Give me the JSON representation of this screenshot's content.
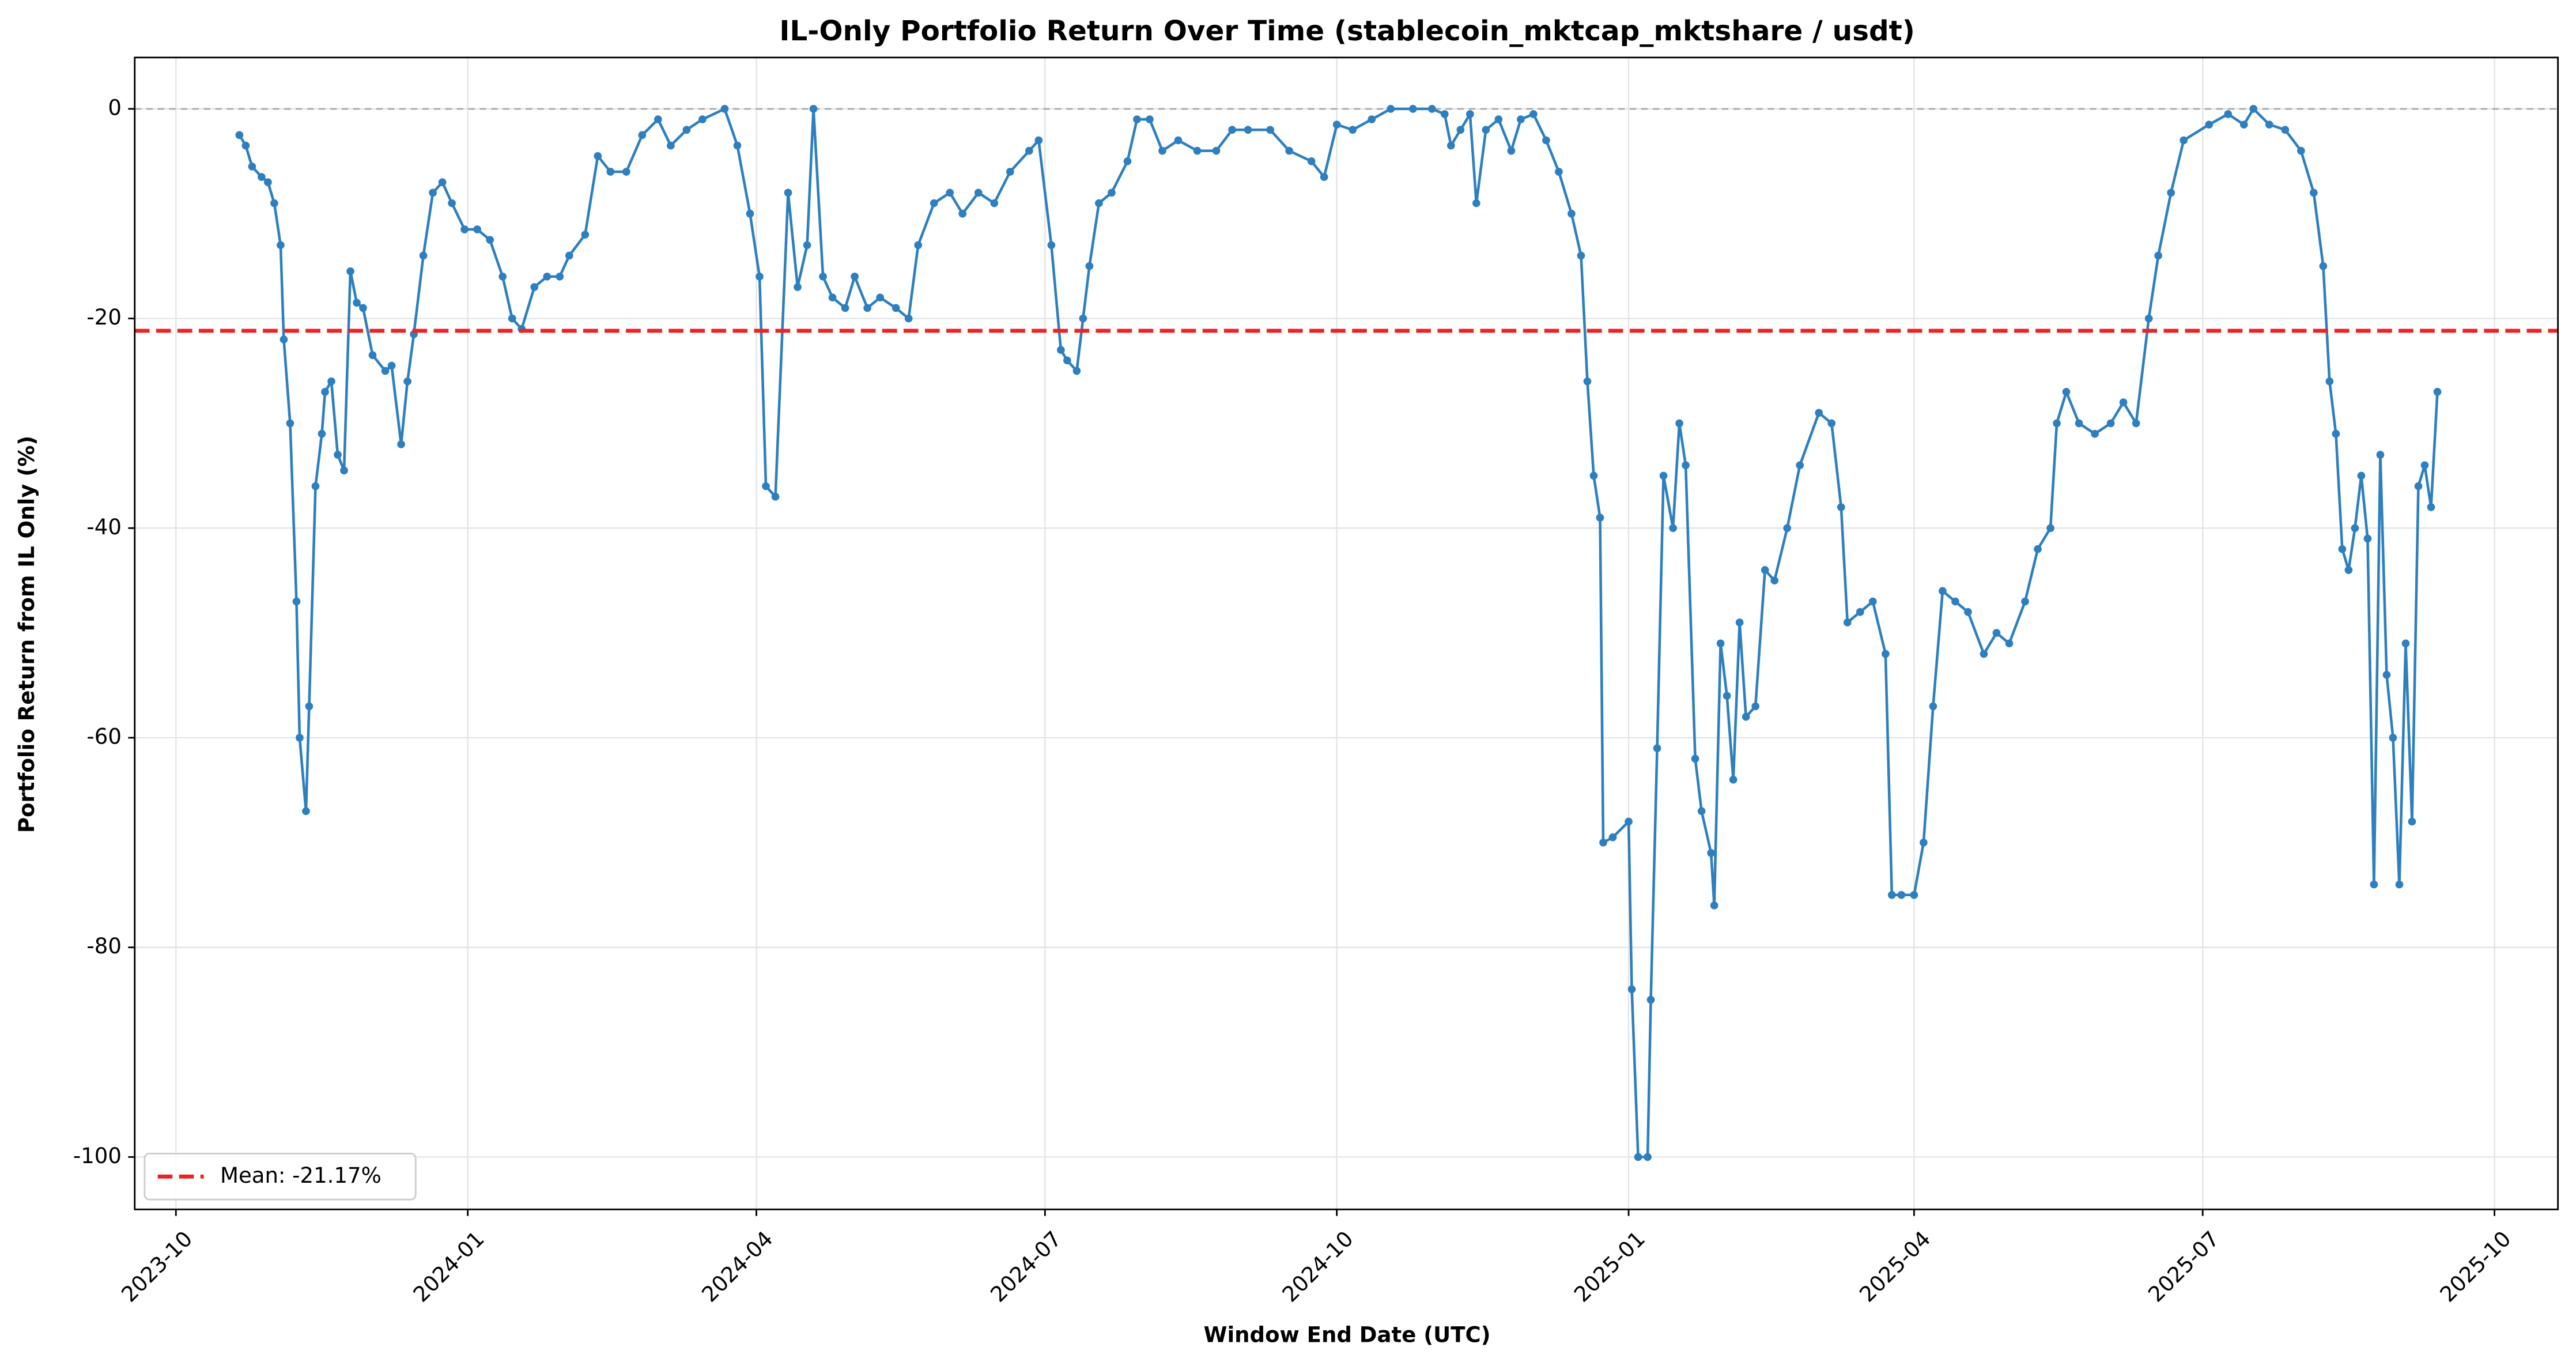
{
  "chart_data": {
    "type": "line",
    "title": "IL-Only Portfolio Return Over Time (stablecoin_mktcap_mktshare / usdt)",
    "x_label": "Window End Date (UTC)",
    "y_label": "Portfolio Return from IL Only (%)",
    "xlim": [
      "2023-09-18",
      "2025-10-21"
    ],
    "ylim": [
      -105,
      4.9
    ],
    "xticks": [
      {
        "value": "2023-10-01",
        "label": "2023-10"
      },
      {
        "value": "2024-01-01",
        "label": "2024-01"
      },
      {
        "value": "2024-04-01",
        "label": "2024-04"
      },
      {
        "value": "2024-07-01",
        "label": "2024-07"
      },
      {
        "value": "2024-10-01",
        "label": "2024-10"
      },
      {
        "value": "2025-01-01",
        "label": "2025-01"
      },
      {
        "value": "2025-04-01",
        "label": "2025-04"
      },
      {
        "value": "2025-07-01",
        "label": "2025-07"
      },
      {
        "value": "2025-10-01",
        "label": "2025-10"
      }
    ],
    "yticks": [
      -100,
      -80,
      -60,
      -40,
      -20,
      0
    ],
    "grid": true,
    "legend": "lower left",
    "reference_line": 0,
    "mean_line": {
      "value": -21.17,
      "label": "Mean: -21.17%",
      "color": "#ee2222"
    },
    "x": [
      "2023-10-21",
      "2023-10-23",
      "2023-10-25",
      "2023-10-28",
      "2023-10-30",
      "2023-11-01",
      "2023-11-03",
      "2023-11-04",
      "2023-11-06",
      "2023-11-08",
      "2023-11-09",
      "2023-11-11",
      "2023-11-12",
      "2023-11-14",
      "2023-11-16",
      "2023-11-17",
      "2023-11-19",
      "2023-11-21",
      "2023-11-23",
      "2023-11-25",
      "2023-11-27",
      "2023-11-29",
      "2023-12-02",
      "2023-12-06",
      "2023-12-08",
      "2023-12-11",
      "2023-12-13",
      "2023-12-15",
      "2023-12-18",
      "2023-12-21",
      "2023-12-24",
      "2023-12-27",
      "2023-12-31",
      "2024-01-04",
      "2024-01-08",
      "2024-01-12",
      "2024-01-15",
      "2024-01-18",
      "2024-01-22",
      "2024-01-26",
      "2024-01-30",
      "2024-02-02",
      "2024-02-07",
      "2024-02-11",
      "2024-02-15",
      "2024-02-20",
      "2024-02-25",
      "2024-03-01",
      "2024-03-05",
      "2024-03-10",
      "2024-03-15",
      "2024-03-22",
      "2024-03-26",
      "2024-03-30",
      "2024-04-02",
      "2024-04-04",
      "2024-04-07",
      "2024-04-11",
      "2024-04-14",
      "2024-04-17",
      "2024-04-19",
      "2024-04-22",
      "2024-04-25",
      "2024-04-29",
      "2024-05-02",
      "2024-05-06",
      "2024-05-10",
      "2024-05-15",
      "2024-05-19",
      "2024-05-22",
      "2024-05-27",
      "2024-06-01",
      "2024-06-05",
      "2024-06-10",
      "2024-06-15",
      "2024-06-20",
      "2024-06-26",
      "2024-06-29",
      "2024-07-03",
      "2024-07-06",
      "2024-07-08",
      "2024-07-11",
      "2024-07-13",
      "2024-07-15",
      "2024-07-18",
      "2024-07-22",
      "2024-07-27",
      "2024-07-30",
      "2024-08-03",
      "2024-08-07",
      "2024-08-12",
      "2024-08-18",
      "2024-08-24",
      "2024-08-29",
      "2024-09-03",
      "2024-09-10",
      "2024-09-16",
      "2024-09-23",
      "2024-09-27",
      "2024-10-01",
      "2024-10-06",
      "2024-10-12",
      "2024-10-18",
      "2024-10-25",
      "2024-10-31",
      "2024-11-04",
      "2024-11-06",
      "2024-11-09",
      "2024-11-12",
      "2024-11-14",
      "2024-11-17",
      "2024-11-21",
      "2024-11-25",
      "2024-11-28",
      "2024-12-02",
      "2024-12-06",
      "2024-12-10",
      "2024-12-14",
      "2024-12-17",
      "2024-12-19",
      "2024-12-21",
      "2024-12-23",
      "2024-12-24",
      "2024-12-27",
      "2025-01-01",
      "2025-01-02",
      "2025-01-04",
      "2025-01-07",
      "2025-01-08",
      "2025-01-10",
      "2025-01-12",
      "2025-01-15",
      "2025-01-17",
      "2025-01-19",
      "2025-01-22",
      "2025-01-24",
      "2025-01-27",
      "2025-01-28",
      "2025-01-30",
      "2025-02-01",
      "2025-02-03",
      "2025-02-05",
      "2025-02-07",
      "2025-02-10",
      "2025-02-13",
      "2025-02-16",
      "2025-02-20",
      "2025-02-24",
      "2025-03-02",
      "2025-03-06",
      "2025-03-09",
      "2025-03-11",
      "2025-03-15",
      "2025-03-19",
      "2025-03-23",
      "2025-03-25",
      "2025-03-28",
      "2025-04-01",
      "2025-04-04",
      "2025-04-07",
      "2025-04-10",
      "2025-04-14",
      "2025-04-18",
      "2025-04-23",
      "2025-04-27",
      "2025-05-01",
      "2025-05-06",
      "2025-05-10",
      "2025-05-14",
      "2025-05-16",
      "2025-05-19",
      "2025-05-23",
      "2025-05-28",
      "2025-06-02",
      "2025-06-06",
      "2025-06-10",
      "2025-06-14",
      "2025-06-17",
      "2025-06-21",
      "2025-06-25",
      "2025-07-03",
      "2025-07-09",
      "2025-07-14",
      "2025-07-17",
      "2025-07-22",
      "2025-07-27",
      "2025-08-01",
      "2025-08-05",
      "2025-08-08",
      "2025-08-10",
      "2025-08-12",
      "2025-08-14",
      "2025-08-16",
      "2025-08-18",
      "2025-08-20",
      "2025-08-22",
      "2025-08-24",
      "2025-08-26",
      "2025-08-28",
      "2025-08-30",
      "2025-09-01",
      "2025-09-03",
      "2025-09-05",
      "2025-09-07",
      "2025-09-09",
      "2025-09-11",
      "2025-09-13"
    ],
    "series": [
      {
        "color": "#2e7fbf",
        "values": [
          -2.5,
          -3.5,
          -5.5,
          -6.5,
          -7,
          -9,
          -13,
          -22,
          -30,
          -47,
          -60,
          -67,
          -57,
          -36,
          -31,
          -27,
          -26,
          -33,
          -34.5,
          -15.5,
          -18.5,
          -19,
          -23.5,
          -25,
          -24.5,
          -32,
          -26,
          -21.5,
          -14,
          -8,
          -7,
          -9,
          -11.5,
          -11.5,
          -12.5,
          -16,
          -20,
          -21,
          -17,
          -16,
          -16,
          -14,
          -12,
          -4.5,
          -6,
          -6,
          -2.5,
          -1,
          -3.5,
          -2,
          -1,
          0,
          -3.5,
          -10,
          -16,
          -36,
          -37,
          -8,
          -17,
          -13,
          0,
          -16,
          -18,
          -19,
          -16,
          -19,
          -18,
          -19,
          -20,
          -13,
          -9,
          -8,
          -10,
          -8,
          -9,
          -6,
          -4,
          -3,
          -13,
          -23,
          -24,
          -25,
          -20,
          -15,
          -9,
          -8,
          -5,
          -1,
          -1,
          -4,
          -3,
          -4,
          -4,
          -2,
          -2,
          -2,
          -4,
          -5,
          -6.5,
          -1.5,
          -2,
          -1,
          0,
          0,
          0,
          -0.5,
          -3.5,
          -2,
          -0.5,
          -9,
          -2,
          -1,
          -4,
          -1,
          -0.5,
          -3,
          -6,
          -10,
          -14,
          -26,
          -35,
          -39,
          -70,
          -69.5,
          -68,
          -84,
          -100,
          -100,
          -85,
          -61,
          -35,
          -40,
          -30,
          -34,
          -62,
          -67,
          -71,
          -76,
          -51,
          -56,
          -64,
          -49,
          -58,
          -57,
          -44,
          -45,
          -40,
          -34,
          -29,
          -30,
          -38,
          -49,
          -48,
          -47,
          -52,
          -75,
          -75,
          -75,
          -70,
          -57,
          -46,
          -47,
          -48,
          -52,
          -50,
          -51,
          -47,
          -42,
          -40,
          -30,
          -27,
          -30,
          -31,
          -30,
          -28,
          -30,
          -20,
          -14,
          -8,
          -3,
          -1.5,
          -0.5,
          -1.5,
          0,
          -1.5,
          -2,
          -4,
          -8,
          -15,
          -26,
          -31,
          -42,
          -44,
          -40,
          -35,
          -41,
          -74,
          -33,
          -54,
          -60,
          -74,
          -51,
          -68,
          -36,
          -34,
          -38,
          -27
        ]
      }
    ]
  }
}
